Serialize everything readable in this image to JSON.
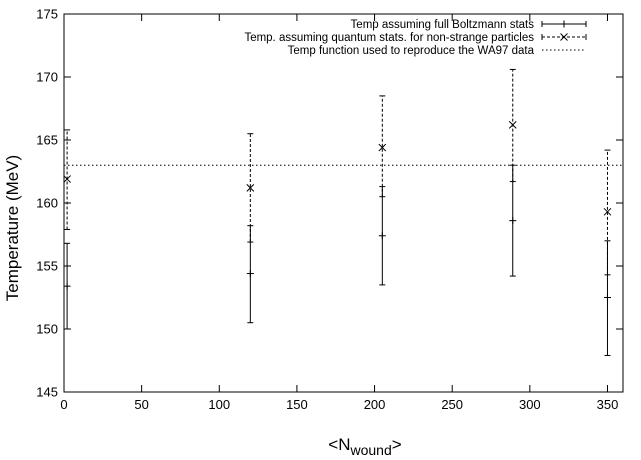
{
  "chart_data": {
    "type": "scatter",
    "title": "",
    "xlabel": "<N",
    "xlabel_sub": "wound",
    "xlabel_close": ">",
    "ylabel": "Temperature (MeV)",
    "xlim": [
      0,
      360
    ],
    "ylim": [
      145,
      175
    ],
    "xticks": [
      0,
      50,
      100,
      150,
      200,
      250,
      300,
      350
    ],
    "yticks": [
      145,
      150,
      155,
      160,
      165,
      170,
      175
    ],
    "grid": false,
    "legend_position": "top-right",
    "series": [
      {
        "name": "Temp assuming full Boltzmann stats",
        "marker": "plus",
        "errorbar_style": "solid",
        "points": [
          {
            "x": 2,
            "y": 153.4,
            "ylow": 150.0,
            "yhigh": 156.8
          },
          {
            "x": 120,
            "y": 154.4,
            "ylow": 150.5,
            "yhigh": 158.2
          },
          {
            "x": 205,
            "y": 157.4,
            "ylow": 153.5,
            "yhigh": 161.3
          },
          {
            "x": 289,
            "y": 158.6,
            "ylow": 154.2,
            "yhigh": 163.0
          },
          {
            "x": 350,
            "y": 152.5,
            "ylow": 147.9,
            "yhigh": 157.0
          }
        ]
      },
      {
        "name": "Temp. assuming quantum stats. for non-strange particles",
        "marker": "cross",
        "errorbar_style": "dashed",
        "points": [
          {
            "x": 2,
            "y": 161.9,
            "ylow": 157.9,
            "yhigh": 165.8
          },
          {
            "x": 120,
            "y": 161.2,
            "ylow": 156.9,
            "yhigh": 165.5
          },
          {
            "x": 205,
            "y": 164.4,
            "ylow": 160.5,
            "yhigh": 168.5
          },
          {
            "x": 289,
            "y": 166.2,
            "ylow": 161.7,
            "yhigh": 170.6
          },
          {
            "x": 350,
            "y": 159.3,
            "ylow": 154.3,
            "yhigh": 164.2
          }
        ]
      },
      {
        "name": "Temp function used to reproduce the WA97 data",
        "style": "dotted",
        "y_const": 163.0
      }
    ]
  }
}
